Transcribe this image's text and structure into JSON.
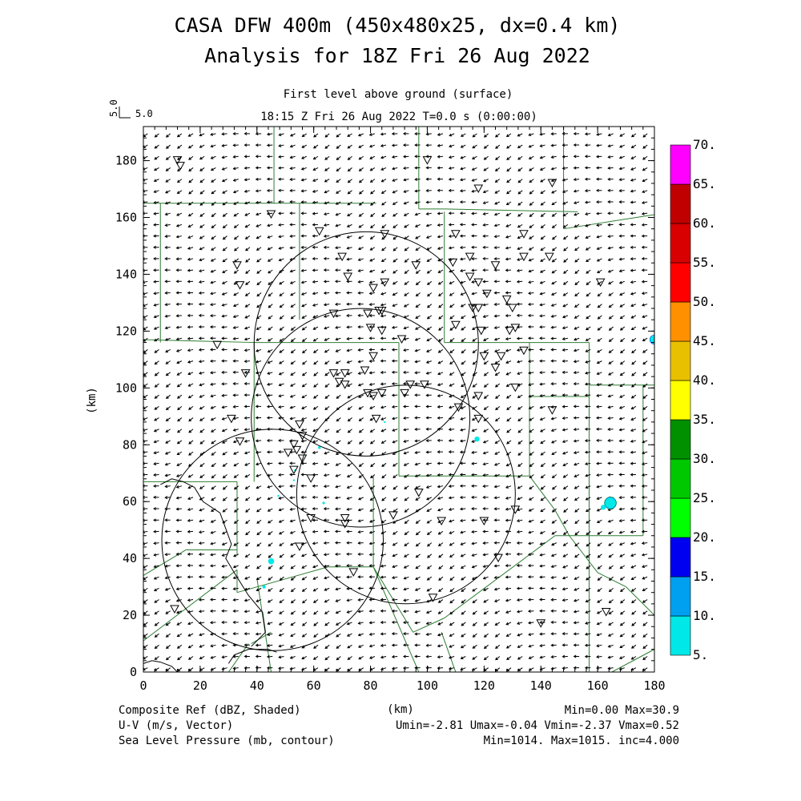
{
  "header": {
    "title_line1": "CASA DFW 400m (450x480x25, dx=0.4 km)",
    "title_line2": "Analysis for 18Z Fri 26 Aug 2022",
    "level": "First level above ground (surface)",
    "time": "18:15 Z Fri 26 Aug 2022    T=0.0 s (0:00:00)",
    "vector_scale_label": "5.0",
    "vector_scale_label_rotated": "5.0"
  },
  "footer": {
    "left": [
      "Composite Ref (dBZ, Shaded)",
      "U-V (m/s, Vector)",
      "Sea Level Pressure (mb, contour)"
    ],
    "right": [
      "Min=0.00 Max=30.9",
      "Umin=-2.81 Umax=-0.04 Vmin=-2.37 Vmax=0.52",
      "Min=1014. Max=1015. inc=4.000"
    ]
  },
  "chart_data": {
    "type": "heatmap",
    "xlabel": "(km)",
    "ylabel": "(km)",
    "xlim": [
      0,
      180
    ],
    "ylim": [
      0,
      192
    ],
    "xticks": [
      0,
      20,
      40,
      60,
      80,
      100,
      120,
      140,
      160,
      180
    ],
    "yticks": [
      0,
      20,
      40,
      60,
      80,
      100,
      120,
      140,
      160,
      180
    ],
    "colorbar": {
      "levels": [
        "5.",
        "10.",
        "15.",
        "20.",
        "25.",
        "30.",
        "35.",
        "40.",
        "45.",
        "50.",
        "55.",
        "60.",
        "65.",
        "70."
      ],
      "colors": [
        "#00e8e8",
        "#00a0f0",
        "#0000f0",
        "#00ff00",
        "#00c800",
        "#009000",
        "#ffff00",
        "#e8c000",
        "#ff9000",
        "#ff0000",
        "#d80000",
        "#c00000",
        "#ff00ff"
      ]
    },
    "wind_field": {
      "u_mean": -2.2,
      "v_mean": -0.8,
      "spacing_km": 5.0
    },
    "radar_circles_km": [
      {
        "cx": 78.5,
        "cy": 115.5,
        "r": 39.5
      },
      {
        "cx": 76.5,
        "cy": 89.5,
        "r": 38.5
      },
      {
        "cx": 92.5,
        "cy": 62.5,
        "r": 38.5
      },
      {
        "cx": 45.5,
        "cy": 46.5,
        "r": 39.0
      }
    ],
    "pressure_contours": [
      {
        "label": "1014",
        "points": [
          [
            0,
            3
          ],
          [
            3,
            4
          ],
          [
            6,
            3.5
          ],
          [
            10,
            2
          ],
          [
            12,
            0
          ]
        ]
      },
      {
        "label": "1014",
        "points": [
          [
            30,
            3
          ],
          [
            32,
            6
          ],
          [
            37,
            8
          ],
          [
            44,
            8
          ],
          [
            47,
            7
          ]
        ]
      },
      {
        "label": "1015",
        "points": [
          [
            6,
            66
          ],
          [
            10,
            68
          ],
          [
            14,
            67
          ],
          [
            18,
            65
          ],
          [
            21,
            60
          ],
          [
            27,
            56
          ],
          [
            31,
            45
          ],
          [
            29,
            40
          ],
          [
            32,
            35
          ],
          [
            37,
            27
          ],
          [
            42,
            21
          ],
          [
            43,
            14
          ],
          [
            38,
            9
          ]
        ]
      }
    ],
    "stations_km": [
      [
        12,
        180
      ],
      [
        13,
        178
      ],
      [
        100,
        180
      ],
      [
        118,
        170
      ],
      [
        144,
        172
      ],
      [
        45,
        161
      ],
      [
        62,
        155
      ],
      [
        85,
        154
      ],
      [
        110,
        154
      ],
      [
        134,
        154
      ],
      [
        33,
        143
      ],
      [
        70,
        146
      ],
      [
        96,
        143
      ],
      [
        109,
        144
      ],
      [
        115,
        146
      ],
      [
        124,
        143
      ],
      [
        134,
        146
      ],
      [
        143,
        146
      ],
      [
        34,
        136
      ],
      [
        72,
        139
      ],
      [
        81,
        135
      ],
      [
        85,
        137
      ],
      [
        115,
        139
      ],
      [
        118,
        137
      ],
      [
        161,
        137
      ],
      [
        121,
        133
      ],
      [
        128,
        131
      ],
      [
        67,
        126
      ],
      [
        79,
        126
      ],
      [
        83,
        127
      ],
      [
        84,
        127
      ],
      [
        116,
        128
      ],
      [
        118,
        128
      ],
      [
        130,
        128
      ],
      [
        110,
        122
      ],
      [
        119,
        120
      ],
      [
        129,
        120
      ],
      [
        131,
        121
      ],
      [
        80,
        121
      ],
      [
        84,
        120
      ],
      [
        91,
        117
      ],
      [
        26,
        115
      ],
      [
        81,
        111
      ],
      [
        120,
        111
      ],
      [
        126,
        111
      ],
      [
        134,
        113
      ],
      [
        36,
        105
      ],
      [
        67,
        105
      ],
      [
        71,
        105
      ],
      [
        69,
        102
      ],
      [
        78,
        106
      ],
      [
        71,
        101
      ],
      [
        124,
        107
      ],
      [
        81,
        97
      ],
      [
        79,
        98
      ],
      [
        84,
        98
      ],
      [
        92,
        98
      ],
      [
        94,
        101
      ],
      [
        99,
        101
      ],
      [
        118,
        97
      ],
      [
        131,
        100
      ],
      [
        144,
        92
      ],
      [
        111,
        93
      ],
      [
        31,
        89
      ],
      [
        55,
        87
      ],
      [
        56,
        83
      ],
      [
        82,
        89
      ],
      [
        118,
        89
      ],
      [
        34,
        81
      ],
      [
        51,
        77
      ],
      [
        53,
        80
      ],
      [
        54,
        78
      ],
      [
        56,
        75
      ],
      [
        53,
        71
      ],
      [
        59,
        68
      ],
      [
        97,
        63
      ],
      [
        59,
        54
      ],
      [
        71,
        54
      ],
      [
        71,
        52
      ],
      [
        88,
        55
      ],
      [
        105,
        53
      ],
      [
        120,
        53
      ],
      [
        131,
        57
      ],
      [
        55,
        44
      ],
      [
        74,
        35
      ],
      [
        125,
        40
      ],
      [
        102,
        26
      ],
      [
        11,
        22
      ],
      [
        140,
        17
      ],
      [
        163,
        21
      ]
    ],
    "reflectivity_cells_km": [
      {
        "x": 164.5,
        "y": 59.5,
        "r": 2.3,
        "band": "25."
      },
      {
        "x": 162.0,
        "y": 58.0,
        "r": 1.0,
        "band": "10."
      },
      {
        "x": 180.0,
        "y": 117.0,
        "r": 1.8,
        "band": "20."
      },
      {
        "x": 45.0,
        "y": 39.0,
        "r": 1.2,
        "band": "10."
      },
      {
        "x": 42.5,
        "y": 30.0,
        "r": 1.1,
        "band": "5."
      },
      {
        "x": 62.0,
        "y": 79.0,
        "r": 0.9,
        "band": "5."
      },
      {
        "x": 53.5,
        "y": 71.0,
        "r": 0.7,
        "band": "5."
      },
      {
        "x": 53.0,
        "y": 67.5,
        "r": 0.6,
        "band": "5."
      },
      {
        "x": 63.5,
        "y": 59.5,
        "r": 0.8,
        "band": "5."
      },
      {
        "x": 47.5,
        "y": 62.0,
        "r": 0.6,
        "band": "5."
      },
      {
        "x": 85.0,
        "y": 88.0,
        "r": 0.6,
        "band": "5."
      },
      {
        "x": 117.5,
        "y": 82.0,
        "r": 1.0,
        "band": "10."
      }
    ],
    "county_lines_km": [
      [
        [
          46,
          192
        ],
        [
          46,
          165
        ]
      ],
      [
        [
          0,
          165
        ],
        [
          82,
          165
        ]
      ],
      [
        [
          97,
          192
        ],
        [
          97,
          163
        ]
      ],
      [
        [
          97,
          163
        ],
        [
          106,
          163
        ]
      ],
      [
        [
          106,
          163
        ],
        [
          153,
          162
        ]
      ],
      [
        [
          148,
          192
        ],
        [
          148,
          156
        ]
      ],
      [
        [
          148,
          156
        ],
        [
          180,
          161
        ]
      ],
      [
        [
          6,
          165
        ],
        [
          6,
          116
        ]
      ],
      [
        [
          55,
          165
        ],
        [
          55,
          124
        ]
      ],
      [
        [
          0,
          117
        ],
        [
          39,
          116
        ]
      ],
      [
        [
          39,
          116
        ],
        [
          39,
          67
        ]
      ],
      [
        [
          106,
          162
        ],
        [
          106,
          116
        ]
      ],
      [
        [
          106,
          116
        ],
        [
          157,
          116
        ]
      ],
      [
        [
          157,
          116
        ],
        [
          157,
          97
        ]
      ],
      [
        [
          157,
          97
        ],
        [
          157,
          0
        ]
      ],
      [
        [
          39,
          116
        ],
        [
          90,
          116
        ]
      ],
      [
        [
          90,
          116
        ],
        [
          90,
          96
        ]
      ],
      [
        [
          90,
          96
        ],
        [
          90,
          69
        ]
      ],
      [
        [
          90,
          69
        ],
        [
          136,
          69
        ]
      ],
      [
        [
          136,
          69
        ],
        [
          136,
          116
        ]
      ],
      [
        [
          136,
          97
        ],
        [
          157,
          97
        ]
      ],
      [
        [
          157,
          101
        ],
        [
          180,
          101
        ]
      ],
      [
        [
          0,
          67
        ],
        [
          33,
          67
        ]
      ],
      [
        [
          33,
          67
        ],
        [
          33,
          41
        ]
      ],
      [
        [
          15,
          43
        ],
        [
          33,
          43
        ]
      ],
      [
        [
          15,
          43
        ],
        [
          0,
          34
        ]
      ],
      [
        [
          33,
          36
        ],
        [
          33,
          28
        ]
      ],
      [
        [
          33,
          36
        ],
        [
          0,
          11
        ]
      ],
      [
        [
          33,
          28
        ],
        [
          65,
          37
        ]
      ],
      [
        [
          65,
          37
        ],
        [
          81,
          37
        ]
      ],
      [
        [
          81,
          37
        ],
        [
          81,
          69
        ]
      ],
      [
        [
          81,
          37
        ],
        [
          95,
          14
        ]
      ],
      [
        [
          95,
          14
        ],
        [
          106,
          19
        ]
      ],
      [
        [
          106,
          19
        ],
        [
          145,
          48
        ]
      ],
      [
        [
          145,
          48
        ],
        [
          176,
          48
        ]
      ],
      [
        [
          176,
          48
        ],
        [
          176,
          101
        ]
      ],
      [
        [
          136,
          69
        ],
        [
          145,
          57
        ]
      ],
      [
        [
          145,
          57
        ],
        [
          150,
          48
        ]
      ],
      [
        [
          150,
          48
        ],
        [
          160,
          35
        ]
      ],
      [
        [
          160,
          35
        ],
        [
          170,
          30
        ]
      ],
      [
        [
          170,
          30
        ],
        [
          180,
          20
        ]
      ],
      [
        [
          81,
          37
        ],
        [
          97,
          0
        ]
      ],
      [
        [
          105,
          14
        ],
        [
          110,
          0
        ]
      ],
      [
        [
          40,
          33
        ],
        [
          45,
          0
        ]
      ],
      [
        [
          45,
          14
        ],
        [
          38,
          10
        ]
      ],
      [
        [
          30,
          0
        ],
        [
          37,
          10
        ]
      ],
      [
        [
          165,
          0
        ],
        [
          180,
          8
        ]
      ]
    ]
  }
}
